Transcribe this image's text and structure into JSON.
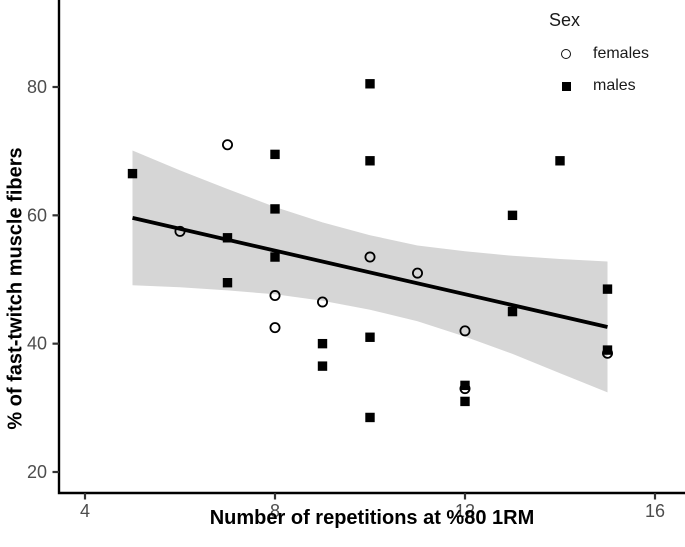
{
  "chart_data": {
    "type": "scatter",
    "title": "",
    "xlabel": "Number of repetitions at %80 1RM",
    "ylabel": "% of fast-twitch muscle fibers",
    "xlim": [
      3.45,
      16.65
    ],
    "ylim": [
      16.6,
      93.6
    ],
    "x_ticks": [
      "4",
      "8",
      "12",
      "16"
    ],
    "y_ticks": [
      "20",
      "40",
      "60",
      "80"
    ],
    "x_tick_values": [
      4,
      8,
      12,
      16
    ],
    "y_tick_values": [
      20,
      40,
      60,
      80
    ],
    "grid": "off",
    "legend": {
      "title": "Sex",
      "position": "top-right-inside",
      "entries": [
        {
          "label": "females",
          "marker": "open-circle"
        },
        {
          "label": "males",
          "marker": "filled-square"
        }
      ]
    },
    "series": [
      {
        "name": "females",
        "marker": "open-circle",
        "points": [
          [
            6,
            57.5
          ],
          [
            7,
            71
          ],
          [
            8,
            47.5
          ],
          [
            8,
            42.5
          ],
          [
            9,
            46.5
          ],
          [
            10,
            53.5
          ],
          [
            11,
            51
          ],
          [
            12,
            42
          ],
          [
            12,
            33
          ],
          [
            15,
            38.5
          ]
        ]
      },
      {
        "name": "males",
        "marker": "filled-square",
        "points": [
          [
            5,
            66.5
          ],
          [
            7,
            56.5
          ],
          [
            7,
            49.5
          ],
          [
            8,
            69.5
          ],
          [
            8,
            61
          ],
          [
            8,
            53.5
          ],
          [
            9,
            40
          ],
          [
            9,
            36.5
          ],
          [
            10,
            80.5
          ],
          [
            10,
            68.5
          ],
          [
            10,
            41
          ],
          [
            10,
            28.5
          ],
          [
            12,
            33.5
          ],
          [
            12,
            31
          ],
          [
            13,
            60
          ],
          [
            13,
            45
          ],
          [
            14,
            68.5
          ],
          [
            15,
            48.5
          ],
          [
            15,
            39
          ]
        ]
      }
    ],
    "regression_line": {
      "x": [
        5,
        15
      ],
      "y": [
        59.6,
        42.6
      ]
    },
    "ci_band": {
      "samples": [
        {
          "x": 5,
          "lo": 49.1,
          "hi": 70.1
        },
        {
          "x": 6,
          "lo": 48.8,
          "hi": 67.0
        },
        {
          "x": 7,
          "lo": 48.3,
          "hi": 64.1
        },
        {
          "x": 8,
          "lo": 47.7,
          "hi": 61.3
        },
        {
          "x": 9,
          "lo": 46.7,
          "hi": 58.9
        },
        {
          "x": 10,
          "lo": 45.3,
          "hi": 56.9
        },
        {
          "x": 11,
          "lo": 43.5,
          "hi": 55.3
        },
        {
          "x": 12,
          "lo": 41.1,
          "hi": 54.4
        },
        {
          "x": 13,
          "lo": 38.4,
          "hi": 53.7
        },
        {
          "x": 14,
          "lo": 35.4,
          "hi": 53.2
        },
        {
          "x": 15,
          "lo": 32.4,
          "hi": 52.8
        }
      ]
    },
    "colors": {
      "points": "#000000",
      "regression_line": "#000000",
      "ci_band": "#d6d6d6",
      "axis": "#000000",
      "tick_marks": "#333333",
      "tick_labels": "#4d4d4d"
    }
  }
}
